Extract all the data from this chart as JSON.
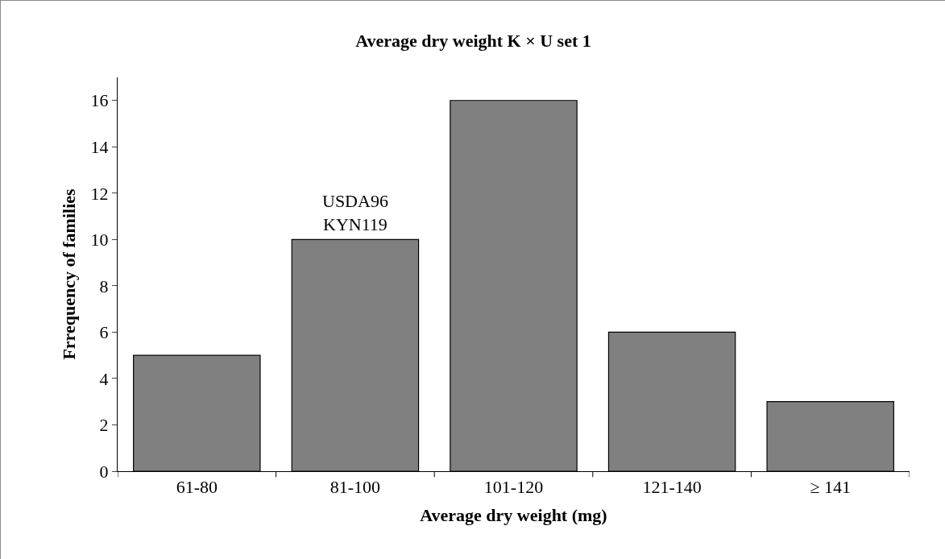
{
  "chart_data": {
    "type": "bar",
    "title": "Average dry weight K × U set 1",
    "xlabel": "Average dry weight (mg)",
    "ylabel": "Frrequency of families",
    "categories": [
      "61-80",
      "81-100",
      "101-120",
      "121-140",
      "≥ 141"
    ],
    "values": [
      5,
      10,
      16,
      6,
      3
    ],
    "color": "#808080",
    "ylim": [
      0,
      17
    ],
    "yticks": [
      0,
      2,
      4,
      6,
      8,
      10,
      12,
      14,
      16
    ],
    "grid": false,
    "annotations": [
      {
        "text": "USDA96\nKYN119",
        "x": "81-100",
        "y": 10
      }
    ]
  }
}
